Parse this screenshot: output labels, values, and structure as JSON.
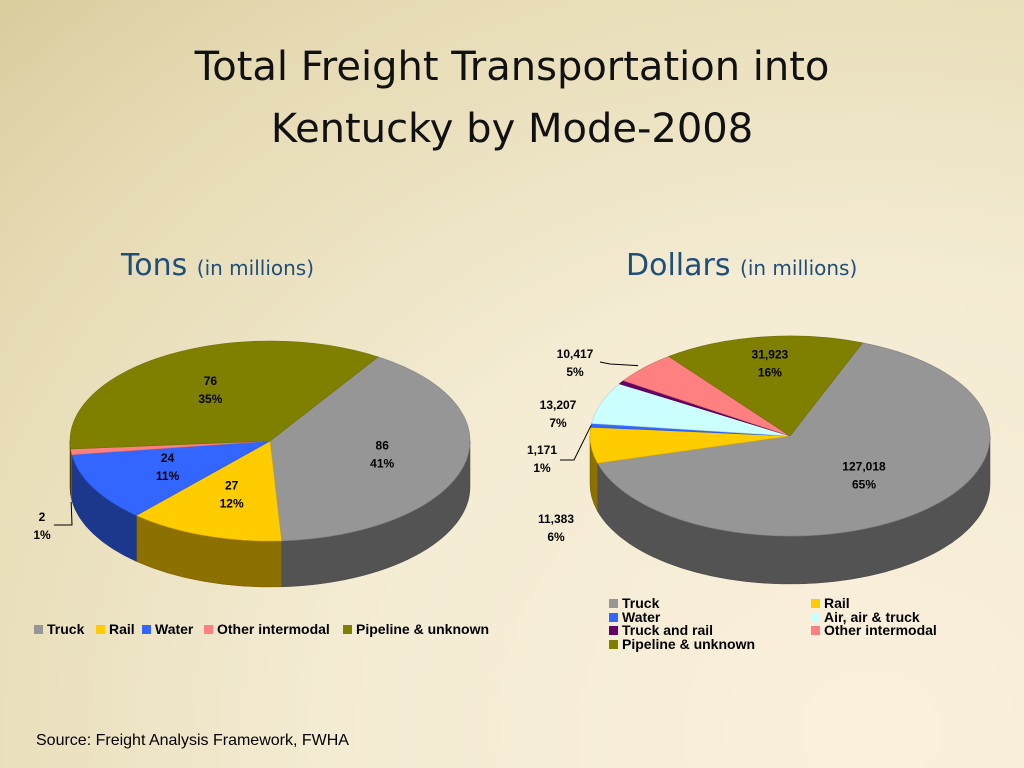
{
  "title": "Total Freight Transportation into Kentucky by Mode-2008",
  "source": "Source: Freight Analysis Framework, FWHA",
  "chart_data": [
    {
      "type": "pie",
      "title": "Tons",
      "unit": "(in millions)",
      "categories": [
        "Truck",
        "Rail",
        "Water",
        "Other intermodal",
        "Pipeline & unknown"
      ],
      "values": [
        86,
        27,
        24,
        2,
        76
      ],
      "percents": [
        "41%",
        "12%",
        "11%",
        "1%",
        "35%"
      ],
      "value_labels": [
        "86",
        "27",
        "24",
        "2",
        "76"
      ],
      "colors": [
        "#969696",
        "#ffcc00",
        "#3366ff",
        "#ff8080",
        "#808000"
      ],
      "legend_position": "bottom"
    },
    {
      "type": "pie",
      "title": "Dollars",
      "unit": "(in millions)",
      "categories": [
        "Truck",
        "Rail",
        "Water",
        "Air, air & truck",
        "Truck and rail",
        "Other intermodal",
        "Pipeline & unknown"
      ],
      "values": [
        127018,
        11383,
        1171,
        13207,
        1171,
        10417,
        31923
      ],
      "percents": [
        "65%",
        "6%",
        "1%",
        "7%",
        "",
        "5%",
        "16%"
      ],
      "value_labels": [
        "127,018",
        "11,383",
        "1,171",
        "13,207",
        "",
        "10,417",
        "31,923"
      ],
      "colors": [
        "#969696",
        "#ffcc00",
        "#3366ff",
        "#ccffff",
        "#660066",
        "#ff8080",
        "#808000"
      ],
      "legend_position": "bottom"
    }
  ]
}
